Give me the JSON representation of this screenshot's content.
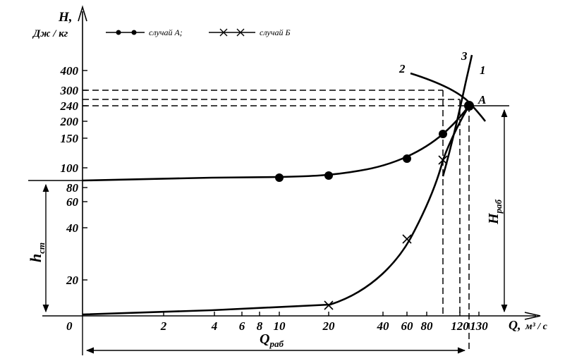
{
  "chart_data": {
    "type": "line",
    "title": "",
    "ylabel": {
      "line1": "H,",
      "line2": "Дж / кг"
    },
    "xlabel": {
      "prefix": "Q,",
      "unit": "м³ / с"
    },
    "origin_label": "0",
    "x_ticks": [
      "2",
      "4",
      "6",
      "8",
      "10",
      "20",
      "40",
      "60",
      "80",
      "120",
      "130"
    ],
    "y_ticks": [
      "20",
      "40",
      "60",
      "80",
      "100",
      "150",
      "200",
      "240",
      "300",
      "400"
    ],
    "legend": [
      {
        "label": "случай А;",
        "marker": "dot"
      },
      {
        "label": "случай Б",
        "marker": "cross"
      }
    ],
    "curve_labels": [
      "1",
      "2",
      "3"
    ],
    "point_label": "A",
    "annotations": {
      "h_st": {
        "main": "h",
        "sub": "ст"
      },
      "H_rab": {
        "main": "H",
        "sub": "раб"
      },
      "Q_rab": {
        "main": "Q",
        "sub": "раб"
      }
    },
    "series": [
      {
        "name": "случай А",
        "marker": "dot",
        "points": [
          [
            10,
            91
          ],
          [
            20,
            93
          ],
          [
            60,
            117
          ],
          [
            100,
            165
          ],
          [
            128,
            245
          ]
        ]
      },
      {
        "name": "случай Б",
        "marker": "cross",
        "points": [
          [
            20,
            8
          ],
          [
            60,
            36
          ],
          [
            100,
            112
          ],
          [
            128,
            245
          ]
        ]
      }
    ],
    "operating_point": {
      "x": 128,
      "y": 245
    },
    "y_scale": "nonlinear (printed ticks)",
    "x_scale": "nonlinear (printed ticks)",
    "grid": false,
    "legend_position": "top-left"
  },
  "colors": {
    "ink": "#000000",
    "background": "#ffffff"
  }
}
